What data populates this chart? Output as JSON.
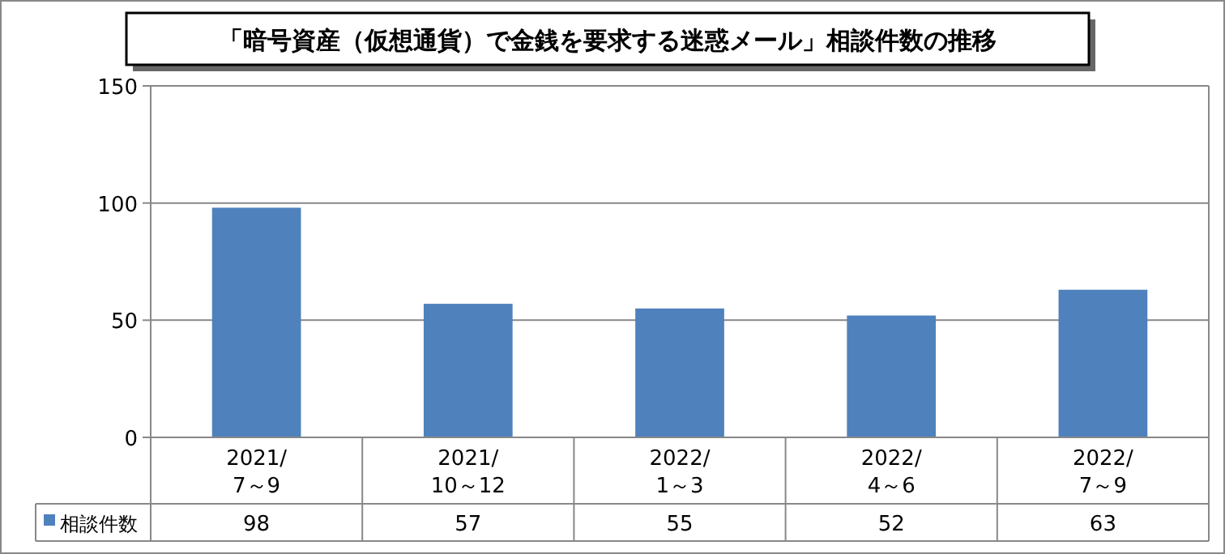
{
  "chart_data": {
    "type": "bar",
    "title": "「暗号資産（仮想通貨）で金銭を要求する迷惑メール」相談件数の推移",
    "categories": [
      "2021/\n7～9",
      "2021/\n10～12",
      "2022/\n1～3",
      "2022/\n4～6",
      "2022/\n7～9"
    ],
    "series": [
      {
        "name": "相談件数",
        "color": "#4f81bd",
        "values": [
          98,
          57,
          55,
          52,
          63
        ]
      }
    ],
    "ylim": [
      0,
      150
    ],
    "yticks": [
      0,
      50,
      100,
      150
    ],
    "grid": "y",
    "data_labels": true,
    "legend": "bottom"
  }
}
